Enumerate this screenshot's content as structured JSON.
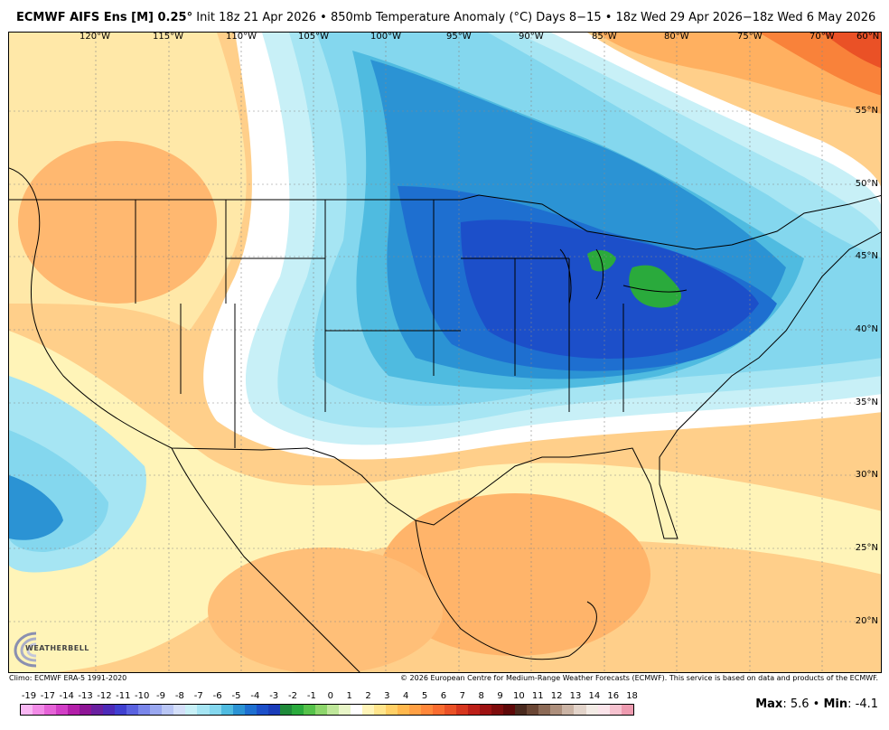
{
  "title": {
    "model": "ECMWF AIFS Ens [M] 0.25",
    "degree_mark": "°",
    "rest": "Init 18z 21 Apr 2026 • 850mb Temperature Anomaly (°C) Days 8−15 • 18z Wed 29 Apr 2026−18z Wed 6 May 2026"
  },
  "map": {
    "lon_labels": [
      "120°W",
      "115°W",
      "110°W",
      "105°W",
      "100°W",
      "95°W",
      "90°W",
      "85°W",
      "80°W",
      "75°W",
      "70°W",
      "60°N"
    ],
    "lat_labels": [
      "55°N",
      "50°N",
      "45°N",
      "40°N",
      "35°N",
      "30°N",
      "25°N",
      "20°N"
    ],
    "logo_text": "WEATHERBELL"
  },
  "footer": {
    "climo": "Climo: ECMWF ERA-5 1991-2020",
    "copyright": "© 2026 European Centre for Medium-Range Weather Forecasts (ECMWF). This service is based on data and products of the ECMWF."
  },
  "colorbar": {
    "ticks": [
      "-19",
      "-17",
      "-14",
      "-13",
      "-12",
      "-11",
      "-10",
      "-9",
      "-8",
      "-7",
      "-6",
      "-5",
      "-4",
      "-3",
      "-2",
      "-1",
      "0",
      "1",
      "2",
      "3",
      "4",
      "5",
      "6",
      "7",
      "8",
      "9",
      "10",
      "11",
      "12",
      "13",
      "14",
      "16",
      "18"
    ],
    "colors": [
      "#f9b7f3",
      "#f28be7",
      "#e563d7",
      "#d23ec6",
      "#b31fa9",
      "#8e1596",
      "#6a20a0",
      "#4d2ab8",
      "#4040d0",
      "#5a62e0",
      "#7a86ea",
      "#9aa8f0",
      "#b9c6f5",
      "#d4dff9",
      "#c8f0f7",
      "#a6e5f3",
      "#84d7ee",
      "#4fbbe0",
      "#2b93d4",
      "#1e6fd0",
      "#1c4fc9",
      "#1a3cb9",
      "#1f8a3a",
      "#2aaa3c",
      "#56c24a",
      "#8dd66b",
      "#bfe79a",
      "#e9f6c8",
      "#ffffff",
      "#fff4b8",
      "#ffe58c",
      "#ffd066",
      "#ffb84d",
      "#ffa044",
      "#ff873a",
      "#f96c30",
      "#ea5126",
      "#d6361e",
      "#bc1f18",
      "#9e1212",
      "#7e0c0c",
      "#5e0808",
      "#4a2a1e",
      "#6a4634",
      "#8c6a56",
      "#ad8f7c",
      "#cbb4a5",
      "#e3d4ca",
      "#f3ebe5",
      "#fbe4ea",
      "#f6c2cf",
      "#ee9bb0"
    ],
    "max_label": "Max",
    "max_value": ": 5.6",
    "sep": " • ",
    "min_label": "Min",
    "min_value": ": -4.1"
  }
}
